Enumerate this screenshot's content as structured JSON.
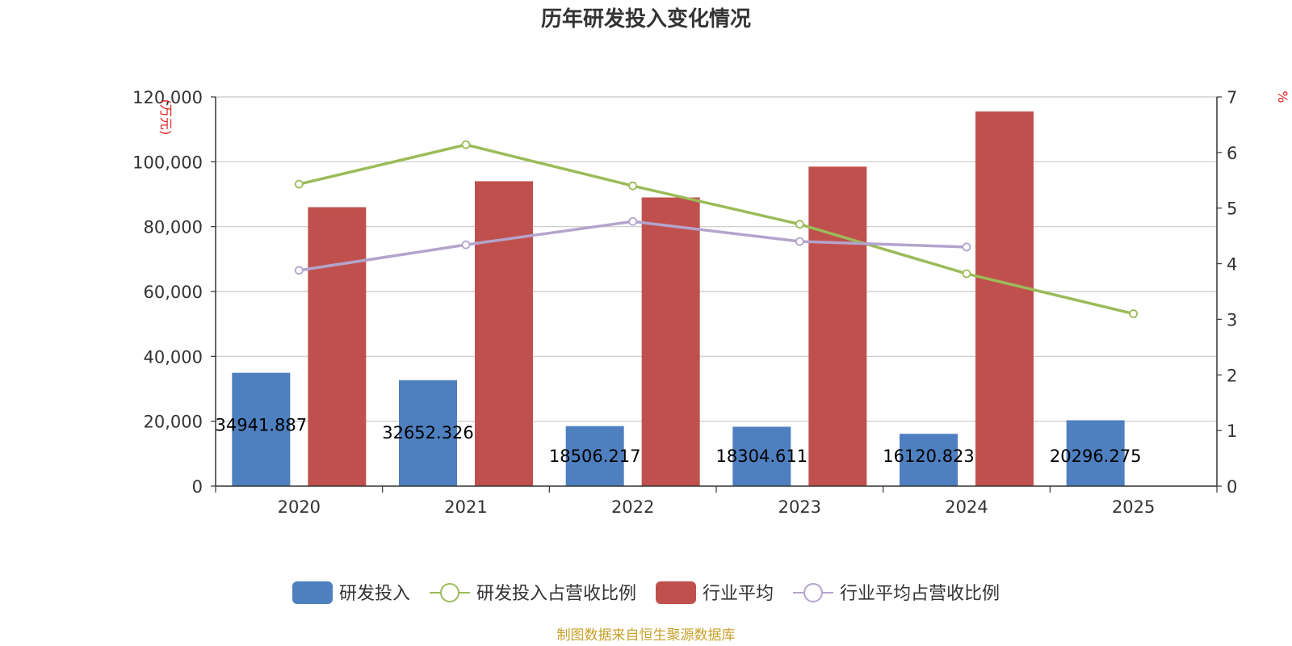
{
  "chart_data": {
    "type": "bar",
    "title": "历年研发投入变化情况",
    "categories": [
      "2020",
      "2021",
      "2022",
      "2023",
      "2024",
      "2025"
    ],
    "y_left": {
      "unit_label": "(万元)",
      "range": [
        0,
        120000
      ],
      "ticks": [
        "0",
        "20,000",
        "40,000",
        "60,000",
        "80,000",
        "100,000",
        "120,000"
      ]
    },
    "y_right": {
      "unit_label": "%",
      "range": [
        0,
        7
      ],
      "ticks": [
        "0",
        "1",
        "2",
        "3",
        "4",
        "5",
        "6",
        "7"
      ]
    },
    "series": [
      {
        "name": "研发投入",
        "type": "bar",
        "axis": "left",
        "color": "#4e7fbf",
        "values": [
          34941.887,
          32652.326,
          18506.217,
          18304.611,
          16120.823,
          20296.275
        ],
        "labels": [
          "34941.887",
          "32652.326",
          "18506.217",
          "18304.611",
          "16120.823",
          "20296.275"
        ]
      },
      {
        "name": "研发投入占营收比例",
        "type": "line",
        "axis": "right",
        "color": "#9bbb59",
        "values": [
          5.43,
          6.14,
          5.4,
          4.71,
          3.82,
          3.1
        ]
      },
      {
        "name": "行业平均",
        "type": "bar",
        "axis": "left",
        "color": "#c0504d",
        "values": [
          86000,
          94000,
          89000,
          98500,
          115500,
          null
        ]
      },
      {
        "name": "行业平均占营收比例",
        "type": "line",
        "axis": "right",
        "color": "#b3a4cc",
        "values": [
          3.88,
          4.34,
          4.76,
          4.4,
          4.3,
          null
        ]
      }
    ],
    "grid": true,
    "legend_position": "bottom-center"
  },
  "source_note": "制图数据来自恒生聚源数据库"
}
